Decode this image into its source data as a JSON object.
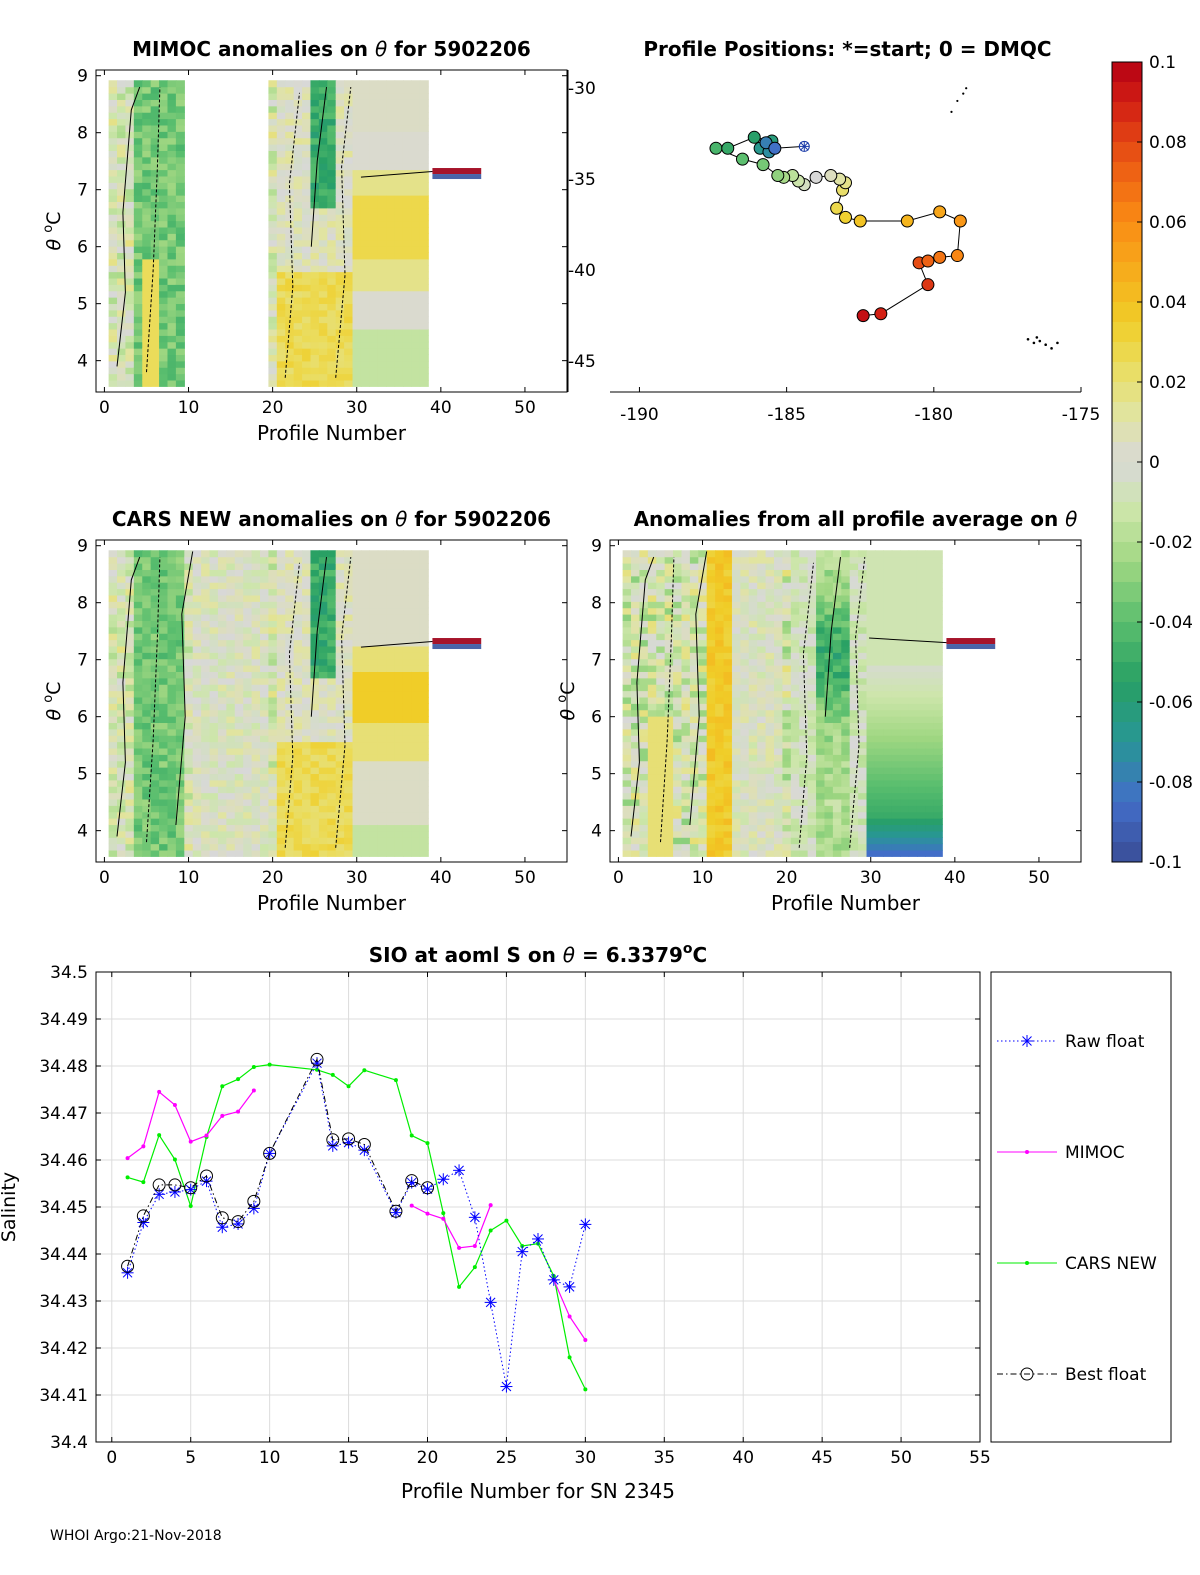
{
  "footer": "WHOI Argo:21-Nov-2018",
  "colors": {
    "raw": "#0000ff",
    "mimoc": "#ff00ff",
    "cars": "#00ee00",
    "best": "#000000",
    "missing": "#d9d9d9",
    "grid": "#dcdcdc"
  },
  "chart_data": [
    {
      "id": "mimoc",
      "type": "heatmap",
      "title_pre": "MIMOC anomalies on",
      "title_post": "for 5902206",
      "xlabel": "Profile Number",
      "ylabel": "θ °C",
      "xlim": [
        -1,
        55
      ],
      "ylim": [
        3.45,
        9.1
      ],
      "xticks": [
        0,
        10,
        20,
        30,
        40,
        50
      ],
      "yticks": [
        4,
        5,
        6,
        7,
        8,
        9
      ],
      "profiles_with_data": "1-9, 20-38",
      "colorbar_range": [
        -0.1,
        0.1
      ],
      "legend_bar_at_theta": 7.3
    },
    {
      "id": "positions",
      "type": "scatter",
      "title": "Profile Positions: *=start; 0 = DMQC",
      "xlim": [
        -191,
        -175
      ],
      "ylim": [
        -46.7,
        -29
      ],
      "xticks": [
        -190,
        -185,
        -180,
        -175
      ],
      "yticks": [
        -30,
        -35,
        -40,
        -45
      ],
      "track_lon": [
        -184.4,
        -185.4,
        -185.7,
        -185.6,
        -185.9,
        -185.5,
        -186.1,
        -187.0,
        -187.4,
        -186.5,
        -185.8,
        -185.3,
        -185.1,
        -184.8,
        -184.6,
        -184.4,
        -184.0,
        -183.5,
        -183.2,
        -183.0,
        -183.1,
        -183.3,
        -183.0,
        -182.5,
        -180.9,
        -179.8,
        -179.1,
        -179.2,
        -179.8,
        -180.2,
        -180.5,
        -180.2,
        -181.8,
        -182.4
      ],
      "track_lat": [
        -33.2,
        -33.3,
        -33.0,
        -33.5,
        -33.3,
        -32.9,
        -32.7,
        -33.3,
        -33.3,
        -33.9,
        -34.2,
        -34.8,
        -34.9,
        -34.8,
        -35.1,
        -35.3,
        -34.9,
        -34.8,
        -35.0,
        -35.2,
        -35.6,
        -36.6,
        -37.1,
        -37.3,
        -37.3,
        -36.8,
        -37.3,
        -39.2,
        -39.3,
        -39.5,
        -39.6,
        -40.8,
        -42.4,
        -42.5
      ],
      "start_marker": "*",
      "coast_points": "shown at top-right and bottom-right"
    },
    {
      "id": "cars",
      "type": "heatmap",
      "title_pre": "CARS NEW anomalies on",
      "title_post": "for 5902206",
      "xlabel": "Profile Number",
      "ylabel": "θ °C",
      "xlim": [
        -1,
        55
      ],
      "ylim": [
        3.45,
        9.1
      ],
      "xticks": [
        0,
        10,
        20,
        30,
        40,
        50
      ],
      "yticks": [
        4,
        5,
        6,
        7,
        8,
        9
      ]
    },
    {
      "id": "avg",
      "type": "heatmap",
      "title_pre": "Anomalies from all profile average on",
      "title_post": "",
      "xlabel": "Profile Number",
      "ylabel": "θ °C",
      "xlim": [
        -1,
        55
      ],
      "ylim": [
        3.45,
        9.1
      ],
      "xticks": [
        0,
        10,
        20,
        30,
        40,
        50
      ],
      "yticks": [
        4,
        5,
        6,
        7,
        8,
        9
      ]
    },
    {
      "id": "colorbar",
      "type": "colorbar",
      "range": [
        -0.1,
        0.1
      ],
      "tick_labels": [
        "0.1",
        "0.08",
        "0.06",
        "0.04",
        "0.02",
        "0",
        "-0.02",
        "-0.04",
        "-0.06",
        "-0.08",
        "-0.1"
      ],
      "tick_values": [
        0.1,
        0.08,
        0.06,
        0.04,
        0.02,
        0,
        -0.02,
        -0.04,
        -0.06,
        -0.08,
        -0.1
      ]
    },
    {
      "id": "salinity",
      "type": "line",
      "title_pre": "SIO at aoml S on",
      "title_mid": "= 6.3379",
      "title_sup": "o",
      "title_post": "C",
      "xlabel": "Profile Number for SN 2345",
      "ylabel": "Salinity",
      "xlim": [
        -1,
        55
      ],
      "ylim": [
        34.4,
        34.5
      ],
      "xticks": [
        0,
        5,
        10,
        15,
        20,
        25,
        30,
        35,
        40,
        45,
        50,
        55
      ],
      "yticks": [
        34.4,
        34.41,
        34.42,
        34.43,
        34.44,
        34.45,
        34.46,
        34.47,
        34.48,
        34.49,
        34.5
      ],
      "ytick_labels": [
        "34.4",
        "34.41",
        "34.42",
        "34.43",
        "34.44",
        "34.45",
        "34.46",
        "34.47",
        "34.48",
        "34.49",
        "34.5"
      ],
      "grid": true,
      "legend_position": "outside-right",
      "series": [
        {
          "name": "Raw float",
          "style": "dotted-star",
          "x": [
            1,
            2,
            3,
            4,
            5,
            6,
            7,
            8,
            9,
            10,
            13,
            14,
            15,
            16,
            18,
            19,
            20,
            21,
            22,
            23,
            24,
            25,
            26,
            27,
            28,
            29,
            30
          ],
          "y": [
            34.436,
            34.4467,
            34.4527,
            34.4532,
            34.4537,
            34.4555,
            34.4457,
            34.4464,
            34.4497,
            34.4614,
            34.4806,
            34.463,
            34.4637,
            34.4621,
            34.4488,
            34.4552,
            34.4538,
            34.4559,
            34.4578,
            34.4478,
            34.4297,
            34.4118,
            34.4405,
            34.4432,
            34.4345,
            34.433,
            34.4463
          ]
        },
        {
          "name": "MIMOC",
          "style": "solid-dot",
          "segments": [
            {
              "x": [
                1,
                2,
                3,
                4,
                5,
                6,
                7,
                8,
                9
              ],
              "y": [
                34.4604,
                34.4629,
                34.4745,
                34.4717,
                34.4639,
                34.4652,
                34.4694,
                34.4703,
                34.4748
              ]
            },
            {
              "x": [
                19,
                20,
                21,
                22,
                23,
                24
              ],
              "y": [
                34.4503,
                34.4486,
                34.4475,
                34.4413,
                34.4417,
                34.4504
              ]
            },
            {
              "x": [
                28,
                29,
                30
              ],
              "y": [
                34.4345,
                34.4267,
                34.4217
              ]
            }
          ]
        },
        {
          "name": "CARS NEW",
          "style": "solid-dot",
          "x": [
            1,
            2,
            3,
            4,
            5,
            6,
            7,
            8,
            9,
            10,
            13,
            14,
            15,
            16,
            18,
            19,
            20,
            21,
            22,
            23,
            24,
            25,
            26,
            27,
            28,
            29,
            30
          ],
          "y": [
            34.4563,
            34.4553,
            34.4653,
            34.4601,
            34.4502,
            34.4649,
            34.4757,
            34.4772,
            34.4798,
            34.4803,
            34.4792,
            34.4781,
            34.4757,
            34.4791,
            34.477,
            34.4652,
            34.4636,
            34.4487,
            34.433,
            34.4372,
            34.445,
            34.4471,
            34.4417,
            34.4422,
            34.4353,
            34.418,
            34.4112
          ]
        },
        {
          "name": "Best float",
          "style": "dashdot-circle",
          "x": [
            1,
            2,
            3,
            4,
            5,
            6,
            7,
            8,
            9,
            10,
            13,
            14,
            15,
            16,
            18,
            19,
            20
          ],
          "y": [
            34.4374,
            34.4481,
            34.4547,
            34.4547,
            34.4541,
            34.4566,
            34.4477,
            34.4469,
            34.4512,
            34.4614,
            34.4814,
            34.4643,
            34.4645,
            34.4633,
            34.4491,
            34.4556,
            34.4541
          ]
        }
      ]
    }
  ]
}
